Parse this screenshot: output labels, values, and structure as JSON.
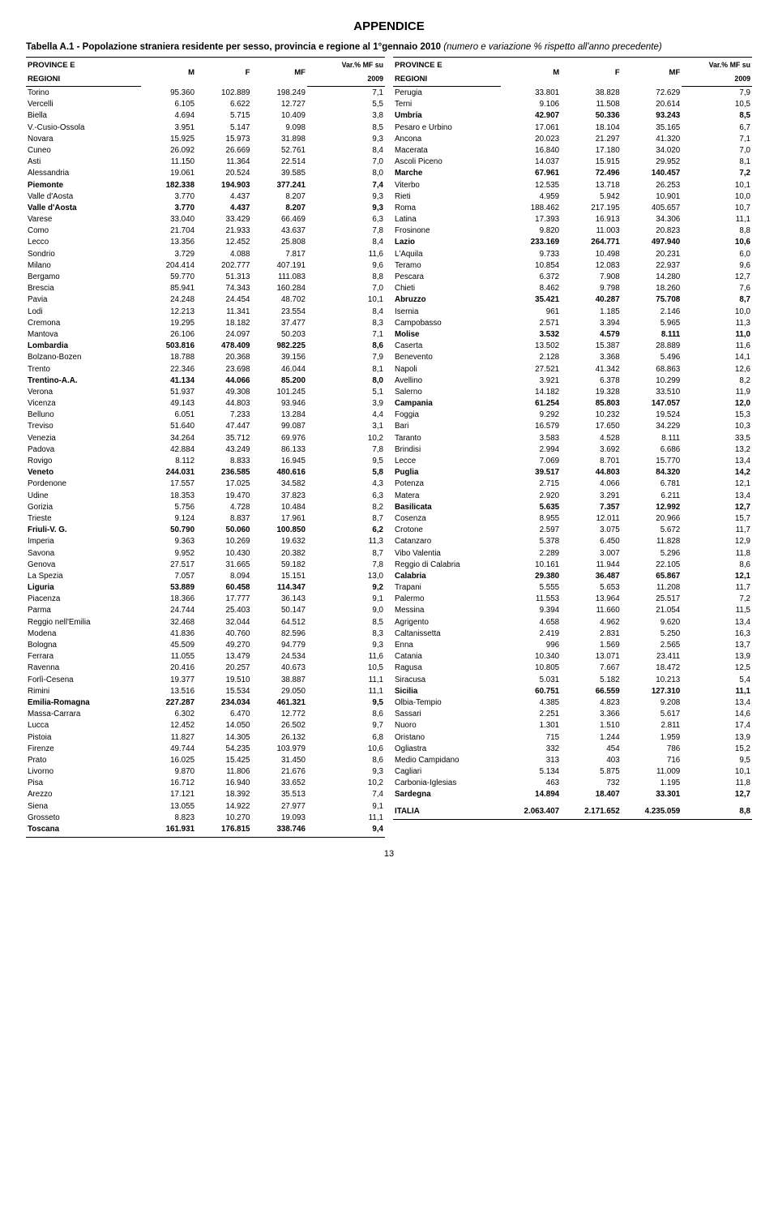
{
  "appendix_heading": "APPENDICE",
  "caption_prefix": "Tabella A.1 - Popolazione straniera residente per sesso, provincia e regione al 1°gennaio 2010 ",
  "caption_suffix": "(numero e variazione % rispetto all'anno precedente)",
  "page_number": "13",
  "headers": {
    "region_col": "PROVINCE E",
    "region_col2": "REGIONI",
    "m": "M",
    "f": "F",
    "mf": "MF",
    "var1": "Var.% MF su",
    "var2": "2009"
  },
  "left_rows": [
    {
      "b": 0,
      "n": "Torino",
      "m": "95.360",
      "f": "102.889",
      "mf": "198.249",
      "v": "7,1"
    },
    {
      "b": 0,
      "n": "Vercelli",
      "m": "6.105",
      "f": "6.622",
      "mf": "12.727",
      "v": "5,5"
    },
    {
      "b": 0,
      "n": "Biella",
      "m": "4.694",
      "f": "5.715",
      "mf": "10.409",
      "v": "3,8"
    },
    {
      "b": 0,
      "n": "V.-Cusio-Ossola",
      "m": "3.951",
      "f": "5.147",
      "mf": "9.098",
      "v": "8,5"
    },
    {
      "b": 0,
      "n": "Novara",
      "m": "15.925",
      "f": "15.973",
      "mf": "31.898",
      "v": "9,3"
    },
    {
      "b": 0,
      "n": "Cuneo",
      "m": "26.092",
      "f": "26.669",
      "mf": "52.761",
      "v": "8,4"
    },
    {
      "b": 0,
      "n": "Asti",
      "m": "11.150",
      "f": "11.364",
      "mf": "22.514",
      "v": "7,0"
    },
    {
      "b": 0,
      "n": "Alessandria",
      "m": "19.061",
      "f": "20.524",
      "mf": "39.585",
      "v": "8,0"
    },
    {
      "b": 1,
      "n": "Piemonte",
      "m": "182.338",
      "f": "194.903",
      "mf": "377.241",
      "v": "7,4"
    },
    {
      "b": 0,
      "n": "Valle d'Aosta",
      "m": "3.770",
      "f": "4.437",
      "mf": "8.207",
      "v": "9,3"
    },
    {
      "b": 1,
      "n": "Valle d'Aosta",
      "m": "3.770",
      "f": "4.437",
      "mf": "8.207",
      "v": "9,3"
    },
    {
      "b": 0,
      "n": "Varese",
      "m": "33.040",
      "f": "33.429",
      "mf": "66.469",
      "v": "6,3"
    },
    {
      "b": 0,
      "n": "Como",
      "m": "21.704",
      "f": "21.933",
      "mf": "43.637",
      "v": "7,8"
    },
    {
      "b": 0,
      "n": "Lecco",
      "m": "13.356",
      "f": "12.452",
      "mf": "25.808",
      "v": "8,4"
    },
    {
      "b": 0,
      "n": "Sondrio",
      "m": "3.729",
      "f": "4.088",
      "mf": "7.817",
      "v": "11,6"
    },
    {
      "b": 0,
      "n": "Milano",
      "m": "204.414",
      "f": "202.777",
      "mf": "407.191",
      "v": "9,6"
    },
    {
      "b": 0,
      "n": "Bergamo",
      "m": "59.770",
      "f": "51.313",
      "mf": "111.083",
      "v": "8,8"
    },
    {
      "b": 0,
      "n": "Brescia",
      "m": "85.941",
      "f": "74.343",
      "mf": "160.284",
      "v": "7,0"
    },
    {
      "b": 0,
      "n": "Pavia",
      "m": "24.248",
      "f": "24.454",
      "mf": "48.702",
      "v": "10,1"
    },
    {
      "b": 0,
      "n": "Lodi",
      "m": "12.213",
      "f": "11.341",
      "mf": "23.554",
      "v": "8,4"
    },
    {
      "b": 0,
      "n": "Cremona",
      "m": "19.295",
      "f": "18.182",
      "mf": "37.477",
      "v": "8,3"
    },
    {
      "b": 0,
      "n": "Mantova",
      "m": "26.106",
      "f": "24.097",
      "mf": "50.203",
      "v": "7,1"
    },
    {
      "b": 1,
      "n": "Lombardia",
      "m": "503.816",
      "f": "478.409",
      "mf": "982.225",
      "v": "8,6"
    },
    {
      "b": 0,
      "n": "Bolzano-Bozen",
      "m": "18.788",
      "f": "20.368",
      "mf": "39.156",
      "v": "7,9"
    },
    {
      "b": 0,
      "n": "Trento",
      "m": "22.346",
      "f": "23.698",
      "mf": "46.044",
      "v": "8,1"
    },
    {
      "b": 1,
      "n": "Trentino-A.A.",
      "m": "41.134",
      "f": "44.066",
      "mf": "85.200",
      "v": "8,0"
    },
    {
      "b": 0,
      "n": "Verona",
      "m": "51.937",
      "f": "49.308",
      "mf": "101.245",
      "v": "5,1"
    },
    {
      "b": 0,
      "n": "Vicenza",
      "m": "49.143",
      "f": "44.803",
      "mf": "93.946",
      "v": "3,9"
    },
    {
      "b": 0,
      "n": "Belluno",
      "m": "6.051",
      "f": "7.233",
      "mf": "13.284",
      "v": "4,4"
    },
    {
      "b": 0,
      "n": "Treviso",
      "m": "51.640",
      "f": "47.447",
      "mf": "99.087",
      "v": "3,1"
    },
    {
      "b": 0,
      "n": "Venezia",
      "m": "34.264",
      "f": "35.712",
      "mf": "69.976",
      "v": "10,2"
    },
    {
      "b": 0,
      "n": "Padova",
      "m": "42.884",
      "f": "43.249",
      "mf": "86.133",
      "v": "7,8"
    },
    {
      "b": 0,
      "n": "Rovigo",
      "m": "8.112",
      "f": "8.833",
      "mf": "16.945",
      "v": "9,5"
    },
    {
      "b": 1,
      "n": "Veneto",
      "m": "244.031",
      "f": "236.585",
      "mf": "480.616",
      "v": "5,8"
    },
    {
      "b": 0,
      "n": "Pordenone",
      "m": "17.557",
      "f": "17.025",
      "mf": "34.582",
      "v": "4,3"
    },
    {
      "b": 0,
      "n": "Udine",
      "m": "18.353",
      "f": "19.470",
      "mf": "37.823",
      "v": "6,3"
    },
    {
      "b": 0,
      "n": "Gorizia",
      "m": "5.756",
      "f": "4.728",
      "mf": "10.484",
      "v": "8,2"
    },
    {
      "b": 0,
      "n": "Trieste",
      "m": "9.124",
      "f": "8.837",
      "mf": "17.961",
      "v": "8,7"
    },
    {
      "b": 1,
      "n": "Friuli-V. G.",
      "m": "50.790",
      "f": "50.060",
      "mf": "100.850",
      "v": "6,2"
    },
    {
      "b": 0,
      "n": "Imperia",
      "m": "9.363",
      "f": "10.269",
      "mf": "19.632",
      "v": "11,3"
    },
    {
      "b": 0,
      "n": "Savona",
      "m": "9.952",
      "f": "10.430",
      "mf": "20.382",
      "v": "8,7"
    },
    {
      "b": 0,
      "n": "Genova",
      "m": "27.517",
      "f": "31.665",
      "mf": "59.182",
      "v": "7,8"
    },
    {
      "b": 0,
      "n": "La Spezia",
      "m": "7.057",
      "f": "8.094",
      "mf": "15.151",
      "v": "13,0"
    },
    {
      "b": 1,
      "n": "Liguria",
      "m": "53.889",
      "f": "60.458",
      "mf": "114.347",
      "v": "9,2"
    },
    {
      "b": 0,
      "n": "Piacenza",
      "m": "18.366",
      "f": "17.777",
      "mf": "36.143",
      "v": "9,1"
    },
    {
      "b": 0,
      "n": "Parma",
      "m": "24.744",
      "f": "25.403",
      "mf": "50.147",
      "v": "9,0"
    },
    {
      "b": 0,
      "n": "Reggio nell'Emilia",
      "m": "32.468",
      "f": "32.044",
      "mf": "64.512",
      "v": "8,5"
    },
    {
      "b": 0,
      "n": "Modena",
      "m": "41.836",
      "f": "40.760",
      "mf": "82.596",
      "v": "8,3"
    },
    {
      "b": 0,
      "n": "Bologna",
      "m": "45.509",
      "f": "49.270",
      "mf": "94.779",
      "v": "9,3"
    },
    {
      "b": 0,
      "n": "Ferrara",
      "m": "11.055",
      "f": "13.479",
      "mf": "24.534",
      "v": "11,6"
    },
    {
      "b": 0,
      "n": "Ravenna",
      "m": "20.416",
      "f": "20.257",
      "mf": "40.673",
      "v": "10,5"
    },
    {
      "b": 0,
      "n": "Forlì-Cesena",
      "m": "19.377",
      "f": "19.510",
      "mf": "38.887",
      "v": "11,1"
    },
    {
      "b": 0,
      "n": "Rimini",
      "m": "13.516",
      "f": "15.534",
      "mf": "29.050",
      "v": "11,1"
    },
    {
      "b": 1,
      "n": "Emilia-Romagna",
      "m": "227.287",
      "f": "234.034",
      "mf": "461.321",
      "v": "9,5"
    },
    {
      "b": 0,
      "n": "Massa-Carrara",
      "m": "6.302",
      "f": "6.470",
      "mf": "12.772",
      "v": "8,6"
    },
    {
      "b": 0,
      "n": "Lucca",
      "m": "12.452",
      "f": "14.050",
      "mf": "26.502",
      "v": "9,7"
    },
    {
      "b": 0,
      "n": "Pistoia",
      "m": "11.827",
      "f": "14.305",
      "mf": "26.132",
      "v": "6,8"
    },
    {
      "b": 0,
      "n": "Firenze",
      "m": "49.744",
      "f": "54.235",
      "mf": "103.979",
      "v": "10,6"
    },
    {
      "b": 0,
      "n": "Prato",
      "m": "16.025",
      "f": "15.425",
      "mf": "31.450",
      "v": "8,6"
    },
    {
      "b": 0,
      "n": "Livorno",
      "m": "9.870",
      "f": "11.806",
      "mf": "21.676",
      "v": "9,3"
    },
    {
      "b": 0,
      "n": "Pisa",
      "m": "16.712",
      "f": "16.940",
      "mf": "33.652",
      "v": "10,2"
    },
    {
      "b": 0,
      "n": "Arezzo",
      "m": "17.121",
      "f": "18.392",
      "mf": "35.513",
      "v": "7,4"
    },
    {
      "b": 0,
      "n": "Siena",
      "m": "13.055",
      "f": "14.922",
      "mf": "27.977",
      "v": "9,1"
    },
    {
      "b": 0,
      "n": "Grosseto",
      "m": "8.823",
      "f": "10.270",
      "mf": "19.093",
      "v": "11,1"
    },
    {
      "b": 1,
      "n": "Toscana",
      "m": "161.931",
      "f": "176.815",
      "mf": "338.746",
      "v": "9,4"
    }
  ],
  "right_rows": [
    {
      "b": 0,
      "n": "Perugia",
      "m": "33.801",
      "f": "38.828",
      "mf": "72.629",
      "v": "7,9"
    },
    {
      "b": 0,
      "n": "Terni",
      "m": "9.106",
      "f": "11.508",
      "mf": "20.614",
      "v": "10,5"
    },
    {
      "b": 1,
      "n": "Umbria",
      "m": "42.907",
      "f": "50.336",
      "mf": "93.243",
      "v": "8,5"
    },
    {
      "b": 0,
      "n": "Pesaro e Urbino",
      "m": "17.061",
      "f": "18.104",
      "mf": "35.165",
      "v": "6,7"
    },
    {
      "b": 0,
      "n": "Ancona",
      "m": "20.023",
      "f": "21.297",
      "mf": "41.320",
      "v": "7,1"
    },
    {
      "b": 0,
      "n": "Macerata",
      "m": "16.840",
      "f": "17.180",
      "mf": "34.020",
      "v": "7,0"
    },
    {
      "b": 0,
      "n": "Ascoli Piceno",
      "m": "14.037",
      "f": "15.915",
      "mf": "29.952",
      "v": "8,1"
    },
    {
      "b": 1,
      "n": "Marche",
      "m": "67.961",
      "f": "72.496",
      "mf": "140.457",
      "v": "7,2"
    },
    {
      "b": 0,
      "n": "Viterbo",
      "m": "12.535",
      "f": "13.718",
      "mf": "26.253",
      "v": "10,1"
    },
    {
      "b": 0,
      "n": "Rieti",
      "m": "4.959",
      "f": "5.942",
      "mf": "10.901",
      "v": "10,0"
    },
    {
      "b": 0,
      "n": "Roma",
      "m": "188.462",
      "f": "217.195",
      "mf": "405.657",
      "v": "10,7"
    },
    {
      "b": 0,
      "n": "Latina",
      "m": "17.393",
      "f": "16.913",
      "mf": "34.306",
      "v": "11,1"
    },
    {
      "b": 0,
      "n": "Frosinone",
      "m": "9.820",
      "f": "11.003",
      "mf": "20.823",
      "v": "8,8"
    },
    {
      "b": 1,
      "n": "Lazio",
      "m": "233.169",
      "f": "264.771",
      "mf": "497.940",
      "v": "10,6"
    },
    {
      "b": 0,
      "n": "L'Aquila",
      "m": "9.733",
      "f": "10.498",
      "mf": "20.231",
      "v": "6,0"
    },
    {
      "b": 0,
      "n": "Teramo",
      "m": "10.854",
      "f": "12.083",
      "mf": "22.937",
      "v": "9,6"
    },
    {
      "b": 0,
      "n": "Pescara",
      "m": "6.372",
      "f": "7.908",
      "mf": "14.280",
      "v": "12,7"
    },
    {
      "b": 0,
      "n": "Chieti",
      "m": "8.462",
      "f": "9.798",
      "mf": "18.260",
      "v": "7,6"
    },
    {
      "b": 1,
      "n": "Abruzzo",
      "m": "35.421",
      "f": "40.287",
      "mf": "75.708",
      "v": "8,7"
    },
    {
      "b": 0,
      "n": "Isernia",
      "m": "961",
      "f": "1.185",
      "mf": "2.146",
      "v": "10,0"
    },
    {
      "b": 0,
      "n": "Campobasso",
      "m": "2.571",
      "f": "3.394",
      "mf": "5.965",
      "v": "11,3"
    },
    {
      "b": 1,
      "n": "Molise",
      "m": "3.532",
      "f": "4.579",
      "mf": "8.111",
      "v": "11,0"
    },
    {
      "b": 0,
      "n": "Caserta",
      "m": "13.502",
      "f": "15.387",
      "mf": "28.889",
      "v": "11,6"
    },
    {
      "b": 0,
      "n": "Benevento",
      "m": "2.128",
      "f": "3.368",
      "mf": "5.496",
      "v": "14,1"
    },
    {
      "b": 0,
      "n": "Napoli",
      "m": "27.521",
      "f": "41.342",
      "mf": "68.863",
      "v": "12,6"
    },
    {
      "b": 0,
      "n": "Avellino",
      "m": "3.921",
      "f": "6.378",
      "mf": "10.299",
      "v": "8,2"
    },
    {
      "b": 0,
      "n": "Salerno",
      "m": "14.182",
      "f": "19.328",
      "mf": "33.510",
      "v": "11,9"
    },
    {
      "b": 1,
      "n": "Campania",
      "m": "61.254",
      "f": "85.803",
      "mf": "147.057",
      "v": "12,0"
    },
    {
      "b": 0,
      "n": "Foggia",
      "m": "9.292",
      "f": "10.232",
      "mf": "19.524",
      "v": "15,3"
    },
    {
      "b": 0,
      "n": "Bari",
      "m": "16.579",
      "f": "17.650",
      "mf": "34.229",
      "v": "10,3"
    },
    {
      "b": 0,
      "n": "Taranto",
      "m": "3.583",
      "f": "4.528",
      "mf": "8.111",
      "v": "33,5"
    },
    {
      "b": 0,
      "n": "Brindisi",
      "m": "2.994",
      "f": "3.692",
      "mf": "6.686",
      "v": "13,2"
    },
    {
      "b": 0,
      "n": "Lecce",
      "m": "7.069",
      "f": "8.701",
      "mf": "15.770",
      "v": "13,4"
    },
    {
      "b": 1,
      "n": "Puglia",
      "m": "39.517",
      "f": "44.803",
      "mf": "84.320",
      "v": "14,2"
    },
    {
      "b": 0,
      "n": "Potenza",
      "m": "2.715",
      "f": "4.066",
      "mf": "6.781",
      "v": "12,1"
    },
    {
      "b": 0,
      "n": "Matera",
      "m": "2.920",
      "f": "3.291",
      "mf": "6.211",
      "v": "13,4"
    },
    {
      "b": 1,
      "n": "Basilicata",
      "m": "5.635",
      "f": "7.357",
      "mf": "12.992",
      "v": "12,7"
    },
    {
      "b": 0,
      "n": "Cosenza",
      "m": "8.955",
      "f": "12.011",
      "mf": "20.966",
      "v": "15,7"
    },
    {
      "b": 0,
      "n": "Crotone",
      "m": "2.597",
      "f": "3.075",
      "mf": "5.672",
      "v": "11,7"
    },
    {
      "b": 0,
      "n": "Catanzaro",
      "m": "5.378",
      "f": "6.450",
      "mf": "11.828",
      "v": "12,9"
    },
    {
      "b": 0,
      "n": "Vibo Valentia",
      "m": "2.289",
      "f": "3.007",
      "mf": "5.296",
      "v": "11,8"
    },
    {
      "b": 0,
      "n": "Reggio di Calabria",
      "m": "10.161",
      "f": "11.944",
      "mf": "22.105",
      "v": "8,6"
    },
    {
      "b": 1,
      "n": "Calabria",
      "m": "29.380",
      "f": "36.487",
      "mf": "65.867",
      "v": "12,1"
    },
    {
      "b": 0,
      "n": "Trapani",
      "m": "5.555",
      "f": "5.653",
      "mf": "11.208",
      "v": "11,7"
    },
    {
      "b": 0,
      "n": "Palermo",
      "m": "11.553",
      "f": "13.964",
      "mf": "25.517",
      "v": "7,2"
    },
    {
      "b": 0,
      "n": "Messina",
      "m": "9.394",
      "f": "11.660",
      "mf": "21.054",
      "v": "11,5"
    },
    {
      "b": 0,
      "n": "Agrigento",
      "m": "4.658",
      "f": "4.962",
      "mf": "9.620",
      "v": "13,4"
    },
    {
      "b": 0,
      "n": "Caltanissetta",
      "m": "2.419",
      "f": "2.831",
      "mf": "5.250",
      "v": "16,3"
    },
    {
      "b": 0,
      "n": "Enna",
      "m": "996",
      "f": "1.569",
      "mf": "2.565",
      "v": "13,7"
    },
    {
      "b": 0,
      "n": "Catania",
      "m": "10.340",
      "f": "13.071",
      "mf": "23.411",
      "v": "13,9"
    },
    {
      "b": 0,
      "n": "Ragusa",
      "m": "10.805",
      "f": "7.667",
      "mf": "18.472",
      "v": "12,5"
    },
    {
      "b": 0,
      "n": "Siracusa",
      "m": "5.031",
      "f": "5.182",
      "mf": "10.213",
      "v": "5,4"
    },
    {
      "b": 1,
      "n": "Sicilia",
      "m": "60.751",
      "f": "66.559",
      "mf": "127.310",
      "v": "11,1"
    },
    {
      "b": 0,
      "n": "Olbia-Tempio",
      "m": "4.385",
      "f": "4.823",
      "mf": "9.208",
      "v": "13,4"
    },
    {
      "b": 0,
      "n": "Sassari",
      "m": "2.251",
      "f": "3.366",
      "mf": "5.617",
      "v": "14,6"
    },
    {
      "b": 0,
      "n": "Nuoro",
      "m": "1.301",
      "f": "1.510",
      "mf": "2.811",
      "v": "17,4"
    },
    {
      "b": 0,
      "n": "Oristano",
      "m": "715",
      "f": "1.244",
      "mf": "1.959",
      "v": "13,9"
    },
    {
      "b": 0,
      "n": "Ogliastra",
      "m": "332",
      "f": "454",
      "mf": "786",
      "v": "15,2"
    },
    {
      "b": 0,
      "n": "Medio Campidano",
      "m": "313",
      "f": "403",
      "mf": "716",
      "v": "9,5"
    },
    {
      "b": 0,
      "n": "Cagliari",
      "m": "5.134",
      "f": "5.875",
      "mf": "11.009",
      "v": "10,1"
    },
    {
      "b": 0,
      "n": "Carbonia-Iglesias",
      "m": "463",
      "f": "732",
      "mf": "1.195",
      "v": "11,8"
    },
    {
      "b": 1,
      "n": "Sardegna",
      "m": "14.894",
      "f": "18.407",
      "mf": "33.301",
      "v": "12,7"
    },
    {
      "b": 0,
      "n": "",
      "m": "",
      "f": "",
      "mf": "",
      "v": ""
    },
    {
      "b": 0,
      "n": "",
      "m": "",
      "f": "",
      "mf": "",
      "v": ""
    },
    {
      "b": 1,
      "n": "ITALIA",
      "m": "2.063.407",
      "f": "2.171.652",
      "mf": "4.235.059",
      "v": "8,8"
    }
  ]
}
